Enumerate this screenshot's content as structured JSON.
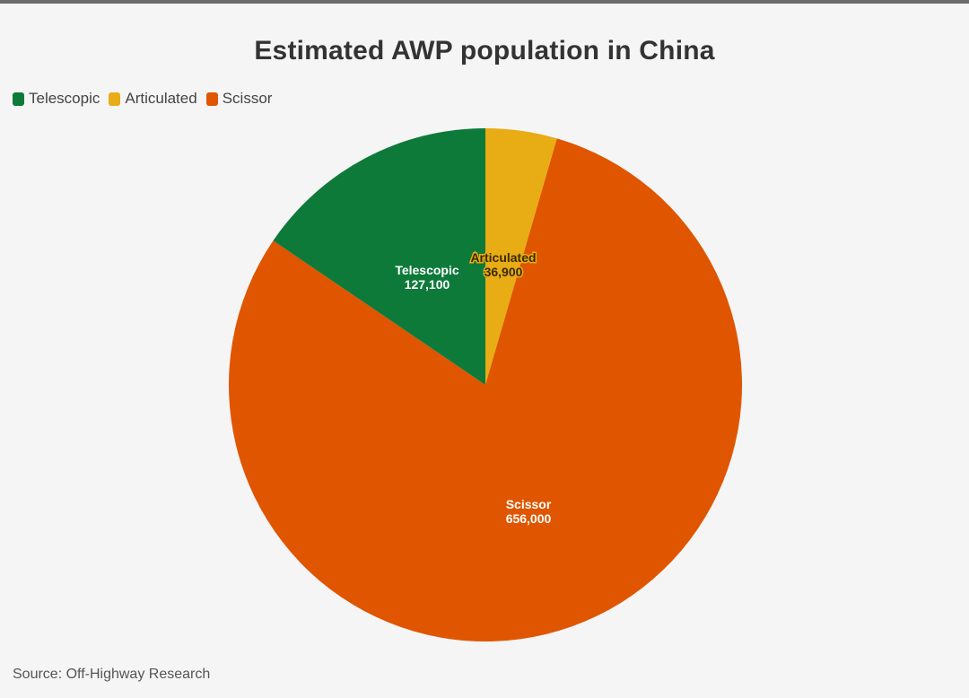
{
  "chart_data": {
    "type": "pie",
    "title": "Estimated AWP population in China",
    "source": "Source: Off-Highway Research",
    "legend_position": "top-left",
    "slices": [
      {
        "label": "Telescopic",
        "value": 127100,
        "value_label": "127,100",
        "color": "#0e7a3a",
        "label_color": "#ffffff"
      },
      {
        "label": "Articulated",
        "value": 36900,
        "value_label": "36,900",
        "color": "#e8ac14",
        "label_color": "#3a2a00"
      },
      {
        "label": "Scissor",
        "value": 656000,
        "value_label": "656,000",
        "color": "#e05500",
        "label_color": "#ffffff"
      }
    ]
  }
}
